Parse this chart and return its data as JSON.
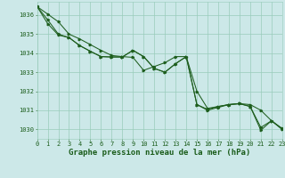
{
  "title": "Graphe pression niveau de la mer (hPa)",
  "bg_color": "#cce8e8",
  "grid_color": "#99ccbb",
  "line_color": "#1e5e1e",
  "xlim": [
    0,
    23
  ],
  "ylim": [
    1029.5,
    1036.7
  ],
  "yticks": [
    1030,
    1031,
    1032,
    1033,
    1034,
    1035,
    1036
  ],
  "xticks": [
    0,
    1,
    2,
    3,
    4,
    5,
    6,
    7,
    8,
    9,
    10,
    11,
    12,
    13,
    14,
    15,
    16,
    17,
    18,
    19,
    20,
    21,
    22,
    23
  ],
  "series1_x": [
    0,
    1,
    2,
    3,
    4,
    5,
    6,
    7,
    8,
    9,
    10,
    11,
    12,
    13,
    14,
    15,
    16,
    17,
    18,
    19,
    20,
    21,
    22,
    23
  ],
  "series1_y": [
    1036.45,
    1036.05,
    1035.65,
    1035.0,
    1034.75,
    1034.45,
    1034.15,
    1033.88,
    1033.82,
    1033.78,
    1033.1,
    1033.3,
    1033.5,
    1033.82,
    1033.82,
    1031.3,
    1031.0,
    1031.15,
    1031.3,
    1031.35,
    1031.3,
    1031.0,
    1030.45,
    1030.05
  ],
  "series2_x": [
    0,
    1,
    2,
    3,
    4,
    5,
    6,
    7,
    8,
    9,
    10,
    11,
    12,
    13,
    14,
    15,
    16,
    17,
    18,
    19,
    20,
    21,
    22,
    23
  ],
  "series2_y": [
    1036.45,
    1035.75,
    1035.0,
    1034.82,
    1034.4,
    1034.1,
    1033.82,
    1033.8,
    1033.8,
    1034.15,
    1033.82,
    1033.2,
    1033.0,
    1033.45,
    1033.82,
    1032.0,
    1031.1,
    1031.2,
    1031.3,
    1031.35,
    1031.2,
    1030.1,
    1030.45,
    1030.0
  ],
  "series3_x": [
    0,
    1,
    2,
    3,
    4,
    5,
    6,
    7,
    8,
    9,
    10,
    11,
    12,
    13,
    14,
    15,
    16,
    17,
    18,
    19,
    20,
    21,
    22,
    23
  ],
  "series3_y": [
    1036.45,
    1035.55,
    1034.95,
    1034.82,
    1034.4,
    1034.1,
    1033.82,
    1033.8,
    1033.8,
    1034.15,
    1033.82,
    1033.2,
    1033.0,
    1033.45,
    1033.82,
    1031.3,
    1031.05,
    1031.2,
    1031.3,
    1031.35,
    1031.2,
    1029.95,
    1030.45,
    1030.0
  ],
  "title_color": "#1a5c1a",
  "title_fontsize": 6.5,
  "tick_fontsize": 5.0,
  "ylabel_fontsize": 5.0
}
